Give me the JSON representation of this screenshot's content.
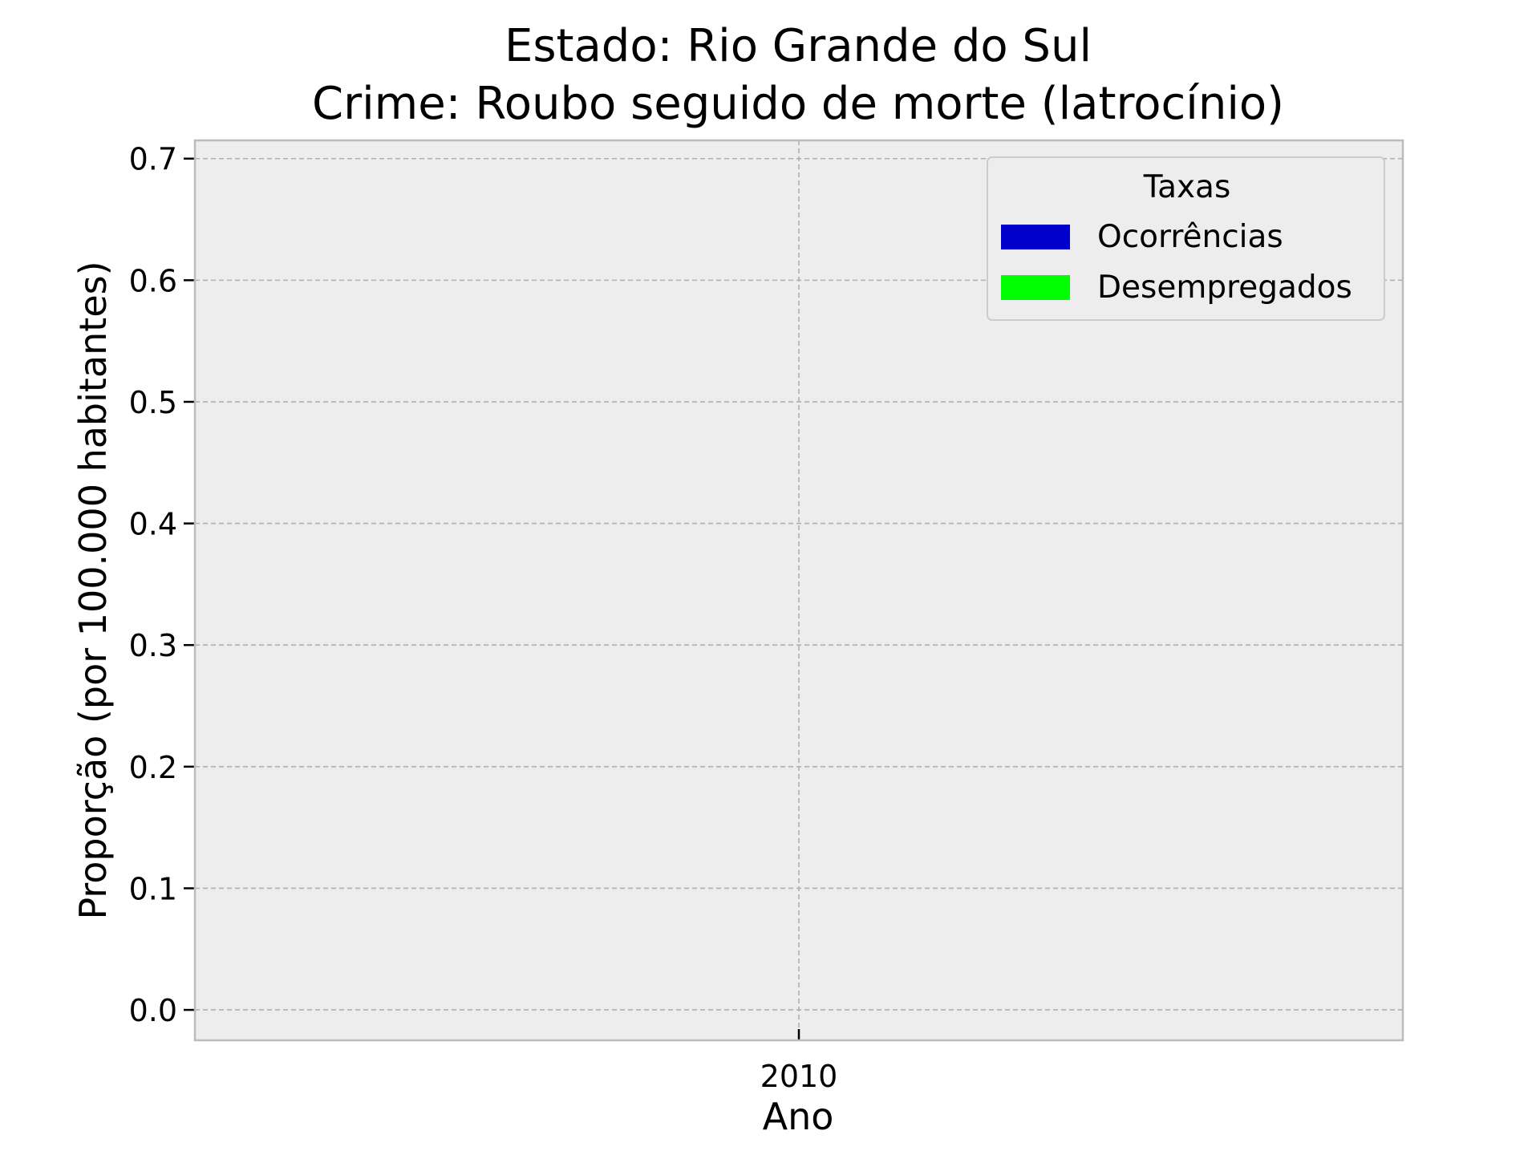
{
  "chart_data": {
    "type": "bar",
    "title_lines": [
      "Estado: Rio Grande do Sul",
      "Crime: Roubo seguido de morte (latrocínio)"
    ],
    "xlabel": "Ano",
    "ylabel": "Proporção (por 100.000 habitantes)",
    "categories": [
      "2010"
    ],
    "series": [
      {
        "name": "Ocorrências",
        "values": [
          0
        ],
        "color": "#0000cc"
      },
      {
        "name": "Desempregados",
        "values": [
          0
        ],
        "color": "#00ff00"
      }
    ],
    "ylim": [
      -0.025,
      0.715
    ],
    "yticks": [
      0.0,
      0.1,
      0.2,
      0.3,
      0.4,
      0.5,
      0.6,
      0.7
    ],
    "ytick_labels": [
      "0.0",
      "0.1",
      "0.2",
      "0.3",
      "0.4",
      "0.5",
      "0.6",
      "0.7"
    ],
    "grid": true,
    "legend": {
      "title": "Taxas",
      "placement": "top-right"
    },
    "colors": {
      "plot_background": "#ededed",
      "grid": "#b0b0b0",
      "frame": "#bcbcbc"
    }
  }
}
